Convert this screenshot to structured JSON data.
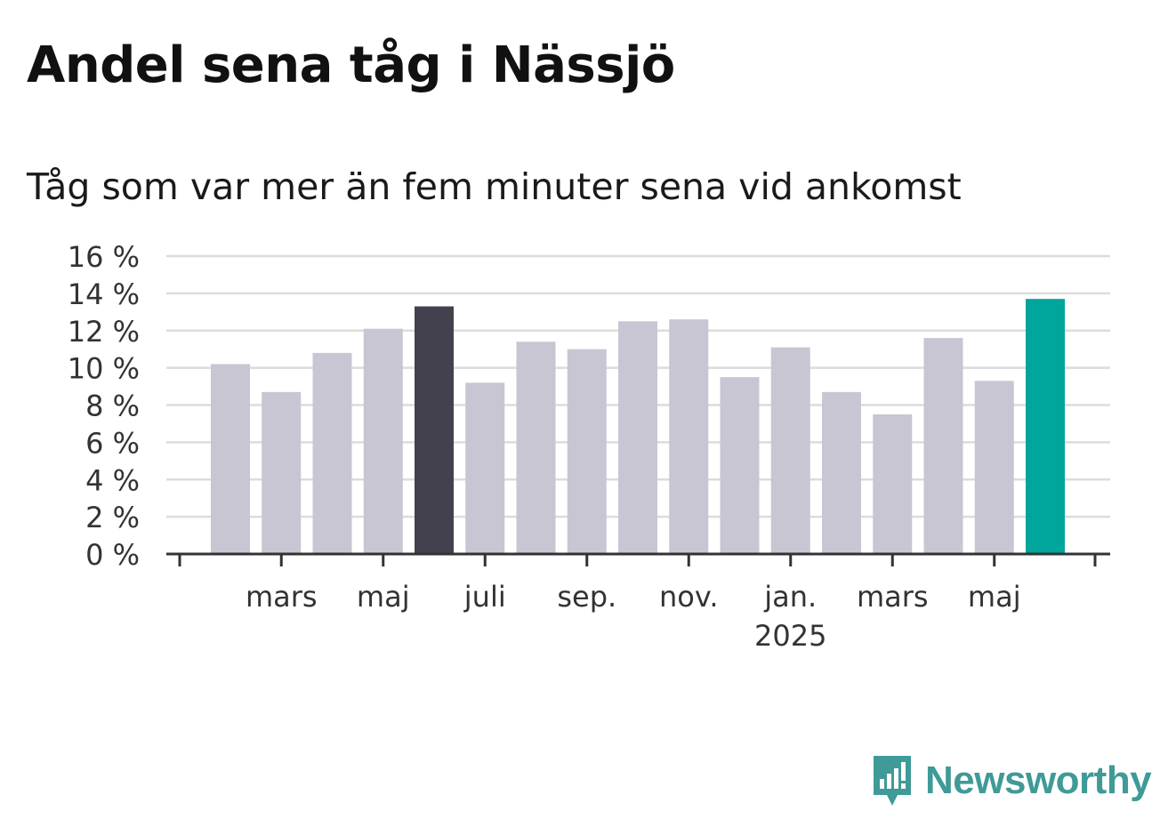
{
  "title": "Andel sena tåg i Nässjö",
  "subtitle": "Tåg som var mer än fem minuter sena vid ankomst",
  "brand": {
    "name": "Newsworthy",
    "icon": "newsworthy-logo-icon"
  },
  "colors": {
    "bar_default": "#c8c6d2",
    "bar_highlight_dark": "#43414d",
    "bar_highlight_latest": "#00a59b",
    "grid": "#dcdcdc",
    "axis": "#333333",
    "brand": "#3f9a98"
  },
  "chart_data": {
    "type": "bar",
    "title": "Andel sena tåg i Nässjö",
    "subtitle": "Tåg som var mer än fem minuter sena vid ankomst",
    "xlabel": "",
    "ylabel": "",
    "ylim": [
      0,
      16
    ],
    "yticks": [
      0,
      2,
      4,
      6,
      8,
      10,
      12,
      14,
      16
    ],
    "ytick_labels": [
      "0 %",
      "2 %",
      "4 %",
      "6 %",
      "8 %",
      "10 %",
      "12 %",
      "14 %",
      "16 %"
    ],
    "x_tick_labels": [
      {
        "label": "mars",
        "sub": ""
      },
      {
        "label": "maj",
        "sub": ""
      },
      {
        "label": "juli",
        "sub": ""
      },
      {
        "label": "sep.",
        "sub": ""
      },
      {
        "label": "nov.",
        "sub": ""
      },
      {
        "label": "jan.",
        "sub": "2025"
      },
      {
        "label": "mars",
        "sub": ""
      },
      {
        "label": "maj",
        "sub": ""
      }
    ],
    "categories": [
      "2024-02",
      "2024-03",
      "2024-04",
      "2024-05",
      "2024-06",
      "2024-07",
      "2024-08",
      "2024-09",
      "2024-10",
      "2024-11",
      "2024-12",
      "2025-01",
      "2025-02",
      "2025-03",
      "2025-04",
      "2025-05",
      "2025-06"
    ],
    "values": [
      10.2,
      8.7,
      10.8,
      12.1,
      13.3,
      9.2,
      11.4,
      11.0,
      12.5,
      12.6,
      9.5,
      11.1,
      8.7,
      7.5,
      11.6,
      9.3,
      13.7
    ],
    "highlight": {
      "2024-06": "dark",
      "2025-06": "latest"
    },
    "grid": true,
    "legend": "none"
  }
}
